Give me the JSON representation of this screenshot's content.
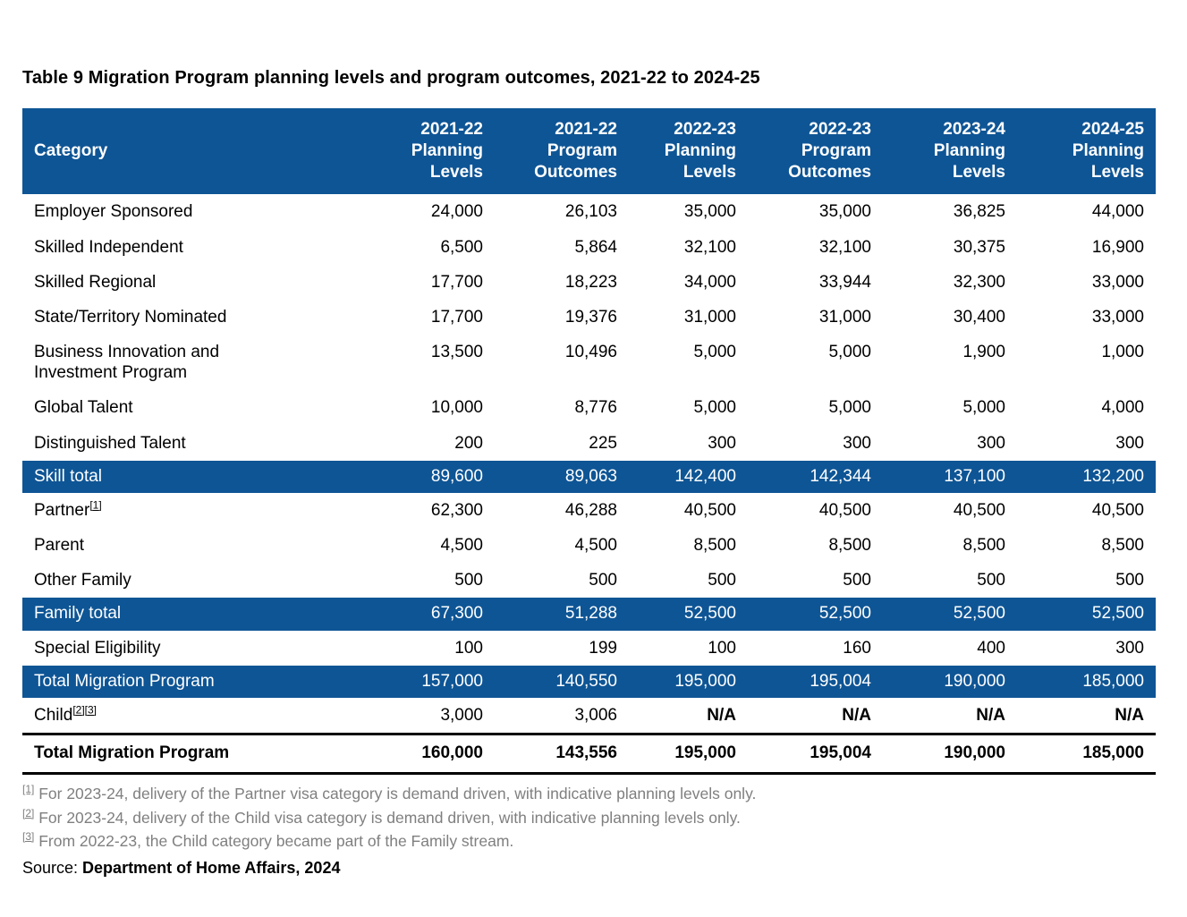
{
  "page_title": "Table 9 Migration Program planning levels and program outcomes, 2021-22 to 2024-25",
  "colors": {
    "header_blue": "#0E5595",
    "total_row_blue": "#0E5595",
    "body_text": "#000000",
    "header_text": "#FFFFFF",
    "footnote_gray": "#7F7F7F",
    "background": "#FFFFFF"
  },
  "table": {
    "category_header": "Category",
    "column_headers": [
      "2021-22\nPlanning\nLevels",
      "2021-22\nProgram\nOutcomes",
      "2022-23\nPlanning\nLevels",
      "2022-23\nProgram\nOutcomes",
      "2023-24\nPlanning\nLevels",
      "2024-25\nPlanning\nLevels"
    ],
    "rows": [
      {
        "label": "Employer Sponsored",
        "values": [
          "24,000",
          "26,103",
          "35,000",
          "35,000",
          "36,825",
          "44,000"
        ]
      },
      {
        "label": "Skilled Independent",
        "values": [
          "6,500",
          "5,864",
          "32,100",
          "32,100",
          "30,375",
          "16,900"
        ]
      },
      {
        "label": "Skilled Regional",
        "values": [
          "17,700",
          "18,223",
          "34,000",
          "33,944",
          "32,300",
          "33,000"
        ]
      },
      {
        "label": "State/Territory Nominated",
        "values": [
          "17,700",
          "19,376",
          "31,000",
          "31,000",
          "30,400",
          "33,000"
        ]
      },
      {
        "label": "Business Innovation and\nInvestment Program",
        "values": [
          "13,500",
          "10,496",
          "5,000",
          "5,000",
          "1,900",
          "1,000"
        ]
      },
      {
        "label": "Global Talent",
        "values": [
          "10,000",
          "8,776",
          "5,000",
          "5,000",
          "5,000",
          "4,000"
        ]
      },
      {
        "label": "Distinguished Talent",
        "values": [
          "200",
          "225",
          "300",
          "300",
          "300",
          "300"
        ]
      },
      {
        "label": "Skill total",
        "values": [
          "89,600",
          "89,063",
          "142,400",
          "142,344",
          "137,100",
          "132,200"
        ]
      },
      {
        "label": "Partner",
        "footnote_ref": "[1]",
        "values": [
          "62,300",
          "46,288",
          "40,500",
          "40,500",
          "40,500",
          "40,500"
        ]
      },
      {
        "label": "Parent",
        "values": [
          "4,500",
          "4,500",
          "8,500",
          "8,500",
          "8,500",
          "8,500"
        ]
      },
      {
        "label": "Other Family",
        "values": [
          "500",
          "500",
          "500",
          "500",
          "500",
          "500"
        ]
      },
      {
        "label": "Family total",
        "values": [
          "67,300",
          "51,288",
          "52,500",
          "52,500",
          "52,500",
          "52,500"
        ]
      },
      {
        "label": "Special Eligibility",
        "values": [
          "100",
          "199",
          "100",
          "160",
          "400",
          "300"
        ]
      },
      {
        "label": "Total Migration Program",
        "values": [
          "157,000",
          "140,550",
          "195,000",
          "195,004",
          "190,000",
          "185,000"
        ]
      },
      {
        "label": "Child",
        "footnote_ref": "[2][3]",
        "values": [
          "3,000",
          "3,006",
          "N/A",
          "N/A",
          "N/A",
          "N/A"
        ]
      },
      {
        "label": "Total Migration Program",
        "values": [
          "160,000",
          "143,556",
          "195,000",
          "195,004",
          "190,000",
          "185,000"
        ]
      }
    ]
  },
  "footnotes": [
    {
      "marker": "[1]",
      "text": " For 2023-24, delivery of the Partner visa category is demand driven, with indicative planning levels only."
    },
    {
      "marker": "[2]",
      "text": " For 2023-24, delivery of the Child visa category is demand driven, with indicative planning levels only."
    },
    {
      "marker": "[3]",
      "text": " From 2022-23, the Child category became part of the Family stream."
    }
  ],
  "source": {
    "prefix": "Source: ",
    "text": "Department of Home Affairs, 2024"
  }
}
